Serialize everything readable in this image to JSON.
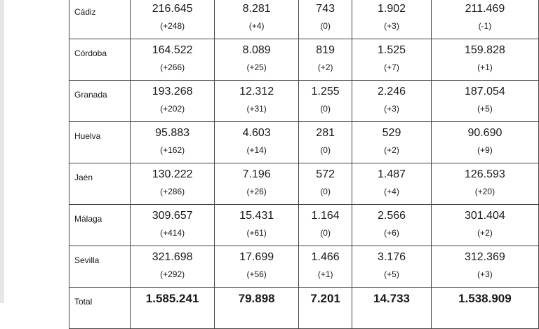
{
  "rows": [
    {
      "name": "Cádiz",
      "cells": [
        [
          "216.645",
          "(+248)"
        ],
        [
          "8.281",
          "(+4)"
        ],
        [
          "743",
          "(0)"
        ],
        [
          "1.902",
          "(+3)"
        ],
        [
          "211.469",
          "(-1)"
        ]
      ]
    },
    {
      "name": "Córdoba",
      "cells": [
        [
          "164.522",
          "(+266)"
        ],
        [
          "8.089",
          "(+25)"
        ],
        [
          "819",
          "(+2)"
        ],
        [
          "1.525",
          "(+7)"
        ],
        [
          "159.828",
          "(+1)"
        ]
      ]
    },
    {
      "name": "Granada",
      "cells": [
        [
          "193.268",
          "(+202)"
        ],
        [
          "12.312",
          "(+31)"
        ],
        [
          "1.255",
          "(0)"
        ],
        [
          "2.246",
          "(+3)"
        ],
        [
          "187.054",
          "(+5)"
        ]
      ]
    },
    {
      "name": "Huelva",
      "cells": [
        [
          "95.883",
          "(+162)"
        ],
        [
          "4.603",
          "(+14)"
        ],
        [
          "281",
          "(0)"
        ],
        [
          "529",
          "(+2)"
        ],
        [
          "90.690",
          "(+9)"
        ]
      ]
    },
    {
      "name": "Jaén",
      "cells": [
        [
          "130.222",
          "(+286)"
        ],
        [
          "7.196",
          "(+26)"
        ],
        [
          "572",
          "(0)"
        ],
        [
          "1.487",
          "(+4)"
        ],
        [
          "126.593",
          "(+20)"
        ]
      ]
    },
    {
      "name": "Málaga",
      "cells": [
        [
          "309.657",
          "(+414)"
        ],
        [
          "15.431",
          "(+61)"
        ],
        [
          "1.164",
          "(0)"
        ],
        [
          "2.566",
          "(+6)"
        ],
        [
          "301.404",
          "(+2)"
        ]
      ]
    },
    {
      "name": "Sevilla",
      "cells": [
        [
          "321.698",
          "(+292)"
        ],
        [
          "17.699",
          "(+56)"
        ],
        [
          "1.466",
          "(+1)"
        ],
        [
          "3.176",
          "(+5)"
        ],
        [
          "312.369",
          "(+3)"
        ]
      ]
    }
  ],
  "total": {
    "name": "Total",
    "values": [
      "1.585.241",
      "79.898",
      "7.201",
      "14.733",
      "1.538.909"
    ]
  }
}
